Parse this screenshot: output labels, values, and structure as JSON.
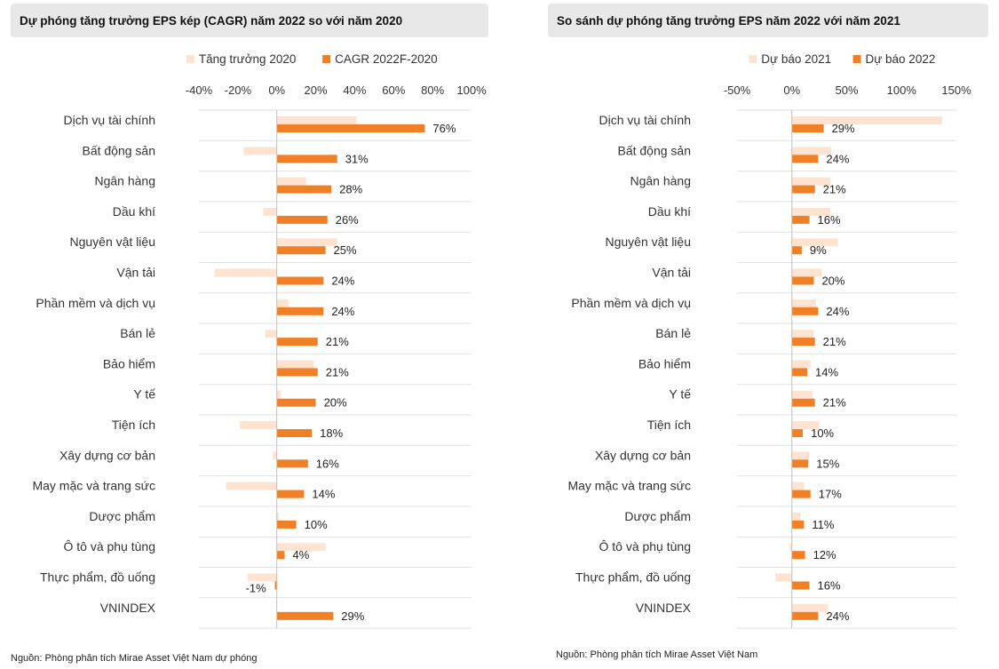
{
  "colors": {
    "light": "#fde3d0",
    "dark": "#f07f26",
    "grid": "#e2e2e2",
    "axis": "#bfbfbf",
    "title_bg": "#e8e8e8"
  },
  "chart_data": [
    {
      "type": "bar",
      "orientation": "horizontal",
      "title": "Dự phóng tăng trưởng EPS kép (CAGR) năm 2022 so với năm 2020",
      "source": "Nguồn: Phòng phân tích Mirae Asset Việt Nam dự phóng",
      "xlim": [
        -40,
        100
      ],
      "xticks": [
        -40,
        -20,
        0,
        20,
        40,
        60,
        80,
        100
      ],
      "tick_labels": [
        "-40%",
        "-20%",
        "0%",
        "20%",
        "40%",
        "60%",
        "80%",
        "100%"
      ],
      "legend_position": "top",
      "categories": [
        "Dịch vụ tài chính",
        "Bất động sản",
        "Ngân hàng",
        "Dầu khí",
        "Nguyên vật liệu",
        "Vận tải",
        "Phần mềm và dịch vụ",
        "Bán lẻ",
        "Bảo hiểm",
        "Y tế",
        "Tiện ích",
        "Xây dựng cơ bản",
        "May mặc và trang sức",
        "Dược phẩm",
        "Ô tô và phụ tùng",
        "Thực phẩm, đồ uống",
        "VNINDEX"
      ],
      "series": [
        {
          "name": "Tăng trưởng 2020",
          "color_key": "light",
          "values": [
            41,
            -17,
            15,
            -7,
            31,
            -32,
            6,
            -6,
            19,
            2,
            -19,
            -2,
            -26,
            1,
            25,
            -15,
            null
          ]
        },
        {
          "name": "CAGR 2022F-2020",
          "color_key": "dark",
          "values": [
            76,
            31,
            28,
            26,
            25,
            24,
            24,
            21,
            21,
            20,
            18,
            16,
            14,
            10,
            4,
            -1,
            29
          ],
          "data_labels": [
            "76%",
            "31%",
            "28%",
            "26%",
            "25%",
            "24%",
            "24%",
            "21%",
            "21%",
            "20%",
            "18%",
            "16%",
            "14%",
            "10%",
            "4%",
            "-1%",
            "29%"
          ]
        }
      ]
    },
    {
      "type": "bar",
      "orientation": "horizontal",
      "title": "So sánh dự phóng tăng trưởng EPS năm 2022 với năm 2021",
      "source": "Nguồn: Phòng phân tích Mirae Asset Việt Nam",
      "xlim": [
        -50,
        150
      ],
      "xticks": [
        -50,
        0,
        50,
        100,
        150
      ],
      "tick_labels": [
        "-50%",
        "0%",
        "50%",
        "100%",
        "150%"
      ],
      "legend_position": "top",
      "categories": [
        "Dịch vụ tài chính",
        "Bất động sản",
        "Ngân hàng",
        "Dầu khí",
        "Nguyên vật liệu",
        "Vận tải",
        "Phần mềm và dịch vụ",
        "Bán lẻ",
        "Bảo hiểm",
        "Y tế",
        "Tiện ích",
        "Xây dựng cơ bản",
        "May mặc và trang sức",
        "Dược phẩm",
        "Ô tô và phụ tùng",
        "Thực phẩm, đồ uống",
        "VNINDEX"
      ],
      "series": [
        {
          "name": "Dự báo 2021",
          "color_key": "light",
          "values": [
            137,
            36,
            35,
            35,
            42,
            27,
            22,
            20,
            17,
            19,
            25,
            16,
            11,
            8,
            -2,
            -15,
            33
          ]
        },
        {
          "name": "Dự báo 2022",
          "color_key": "dark",
          "values": [
            29,
            24,
            21,
            16,
            9,
            20,
            24,
            21,
            14,
            21,
            10,
            15,
            17,
            11,
            12,
            16,
            24
          ],
          "data_labels": [
            "29%",
            "24%",
            "21%",
            "16%",
            "9%",
            "20%",
            "24%",
            "21%",
            "14%",
            "21%",
            "10%",
            "15%",
            "17%",
            "11%",
            "12%",
            "16%",
            "24%"
          ]
        }
      ]
    }
  ]
}
